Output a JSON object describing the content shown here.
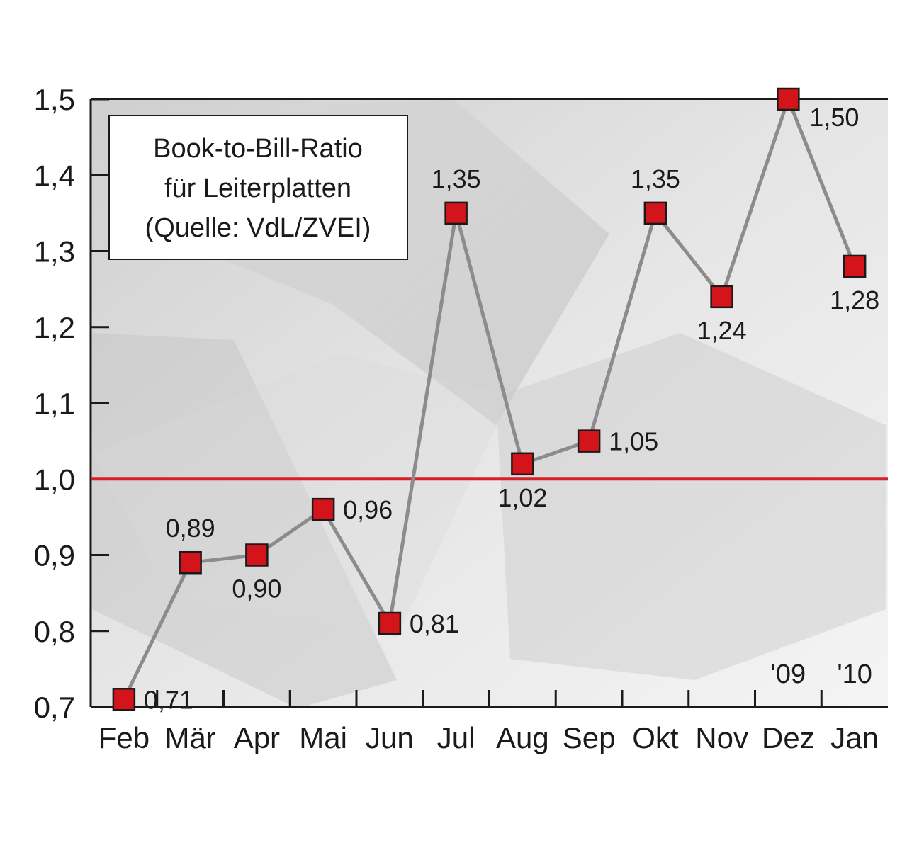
{
  "chart_data": {
    "type": "line",
    "title_lines": [
      "Book-to-Bill-Ratio",
      "für Leiterplatten",
      "(Quelle: VdL/ZVEI)"
    ],
    "categories": [
      "Feb",
      "Mär",
      "Apr",
      "Mai",
      "Jun",
      "Jul",
      "Aug",
      "Sep",
      "Okt",
      "Nov",
      "Dez",
      "Jan"
    ],
    "values": [
      0.71,
      0.89,
      0.9,
      0.96,
      0.81,
      1.35,
      1.02,
      1.05,
      1.35,
      1.24,
      1.5,
      1.28
    ],
    "data_labels": [
      "0,71",
      "0,89",
      "0,90",
      "0,96",
      "0,81",
      "1,35",
      "1,02",
      "1,05",
      "1,35",
      "1,24",
      "1,50",
      "1,28"
    ],
    "label_positions": [
      "right",
      "above",
      "below",
      "right",
      "right",
      "above",
      "below",
      "right",
      "above",
      "below",
      "below-right",
      "below"
    ],
    "y_ticks": [
      0.7,
      0.8,
      0.9,
      1.0,
      1.1,
      1.2,
      1.3,
      1.4,
      1.5
    ],
    "y_tick_labels": [
      "0,7",
      "0,8",
      "0,9",
      "1,0",
      "1,1",
      "1,2",
      "1,3",
      "1,4",
      "1,5"
    ],
    "ylim": [
      0.7,
      1.5
    ],
    "reference_line": {
      "value": 1.0,
      "color": "#d62027"
    },
    "year_markers": [
      {
        "label": "'09",
        "category_index": 10
      },
      {
        "label": "'10",
        "category_index": 11
      }
    ],
    "colors": {
      "line": "#8c8c8c",
      "marker_fill": "#d3141b",
      "marker_stroke": "#1a1a1a",
      "axis": "#1a1a1a"
    },
    "grid": false,
    "legend": "top-left"
  }
}
